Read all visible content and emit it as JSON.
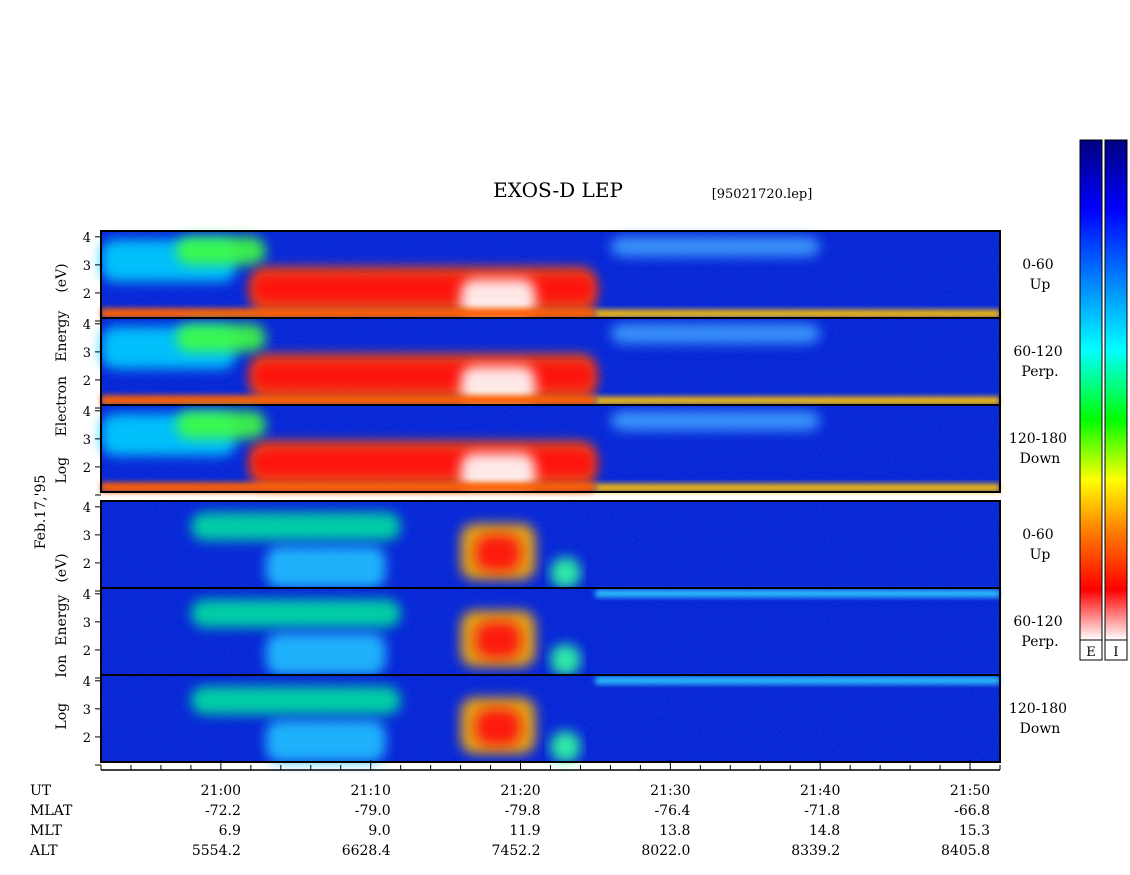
{
  "title": "EXOS-D LEP",
  "file_label": "[95021720.lep]",
  "date_label": "Feb.17,'95",
  "electron_label": {
    "line1": "Log",
    "line2": "Electron",
    "line3": "Energy",
    "line4": "(eV)"
  },
  "ion_label": {
    "line1": "Log",
    "line2": "Ion",
    "line3": "Energy",
    "line4": "(eV)"
  },
  "colorbar": {
    "labels": [
      "E",
      "I"
    ],
    "gradient": [
      "#ffffff",
      "#ff0000",
      "#ff8000",
      "#ffff00",
      "#00ff00",
      "#00ffff",
      "#0080ff",
      "#0000ff",
      "#000080"
    ]
  },
  "chart_data": {
    "type": "heatmap",
    "ylabel": "Log Energy (eV)",
    "yticks": [
      "1",
      "2",
      "3",
      "4"
    ],
    "ylim": [
      1,
      4
    ],
    "panels": [
      {
        "species": "Electron",
        "pitch_angle": "0-60",
        "direction": "Up"
      },
      {
        "species": "Electron",
        "pitch_angle": "60-120",
        "direction": "Perp."
      },
      {
        "species": "Electron",
        "pitch_angle": "120-180",
        "direction": "Down"
      },
      {
        "species": "Ion",
        "pitch_angle": "0-60",
        "direction": "Up"
      },
      {
        "species": "Ion",
        "pitch_angle": "60-120",
        "direction": "Perp."
      },
      {
        "species": "Ion",
        "pitch_angle": "120-180",
        "direction": "Down"
      }
    ],
    "xlim": [
      "20:52",
      "21:52"
    ],
    "xticks": [
      "21:00",
      "21:10",
      "21:20",
      "21:30",
      "21:40",
      "21:50"
    ],
    "ephemeris": {
      "rows": [
        "UT",
        "MLAT",
        "MLT",
        "ALT"
      ],
      "MLAT": [
        "-72.2",
        "-79.0",
        "-79.8",
        "-76.4",
        "-71.8",
        "-66.8"
      ],
      "MLT": [
        "6.9",
        "9.0",
        "11.9",
        "13.8",
        "14.8",
        "15.3"
      ],
      "ALT": [
        "5554.2",
        "6628.4",
        "7452.2",
        "8022.0",
        "8339.2",
        "8405.8"
      ]
    }
  }
}
